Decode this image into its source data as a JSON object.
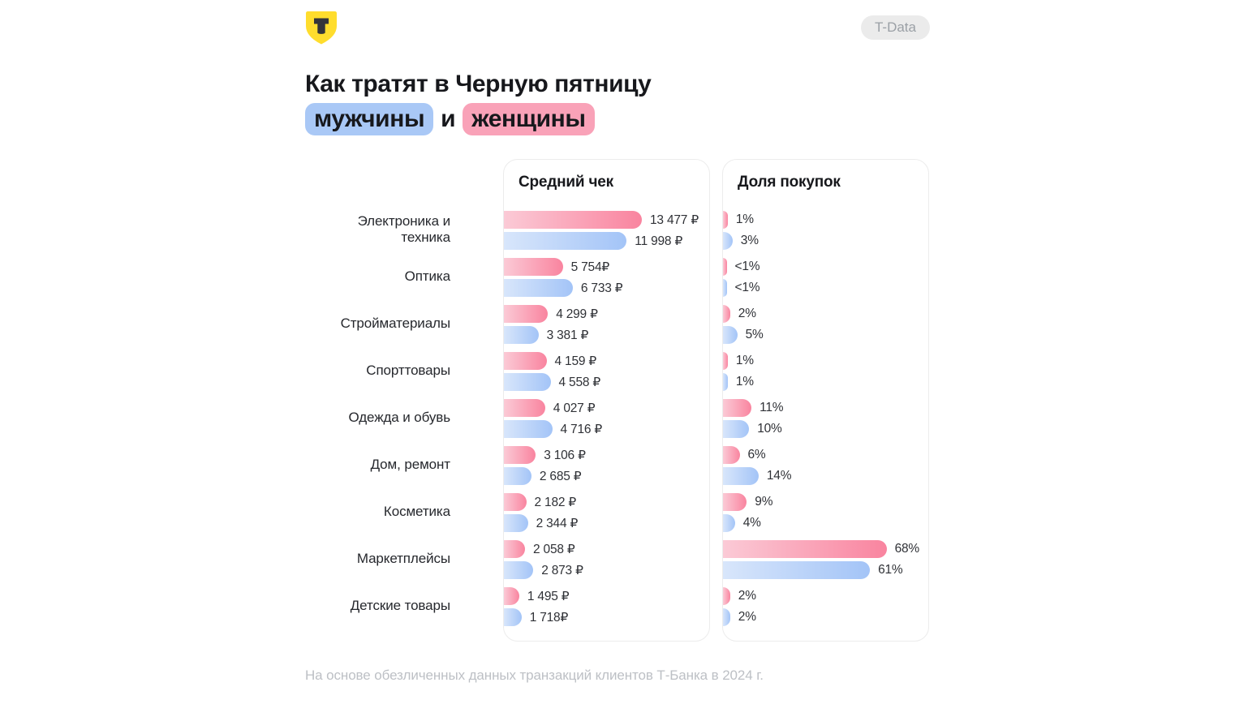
{
  "header": {
    "logo_letter": "T",
    "badge": "T-Data"
  },
  "title": {
    "line1": "Как тратят в Черную пятницу",
    "pill_men": "мужчины",
    "conjunction": "и",
    "pill_women": "женщины"
  },
  "categories": [
    {
      "label": "Электроника и техника",
      "icon": "monitor-icon"
    },
    {
      "label": "Оптика",
      "icon": "glasses-icon"
    },
    {
      "label": "Стройматериалы",
      "icon": "hammer-icon"
    },
    {
      "label": "Спорттовары",
      "icon": "dumbbell-icon"
    },
    {
      "label": "Одежда и обувь",
      "icon": "tshirt-icon"
    },
    {
      "label": "Дом, ремонт",
      "icon": "house-icon"
    },
    {
      "label": "Косметика",
      "icon": "lips-icon"
    },
    {
      "label": "Маркетплейсы",
      "icon": "cart-icon"
    },
    {
      "label": "Детские товары",
      "icon": "duck-icon"
    }
  ],
  "chart_data": [
    {
      "type": "bar",
      "orientation": "horizontal",
      "title": "Средний чек",
      "unit": "₽",
      "categories": [
        "Электроника и техника",
        "Оптика",
        "Стройматериалы",
        "Спорттовары",
        "Одежда и обувь",
        "Дом, ремонт",
        "Косметика",
        "Маркетплейсы",
        "Детские товары"
      ],
      "series": [
        {
          "name": "женщины",
          "color": "#f9849f",
          "values": [
            13477,
            5754,
            4299,
            4159,
            4027,
            3106,
            2182,
            2058,
            1495
          ],
          "value_labels": [
            "13 477 ₽",
            "5 754₽",
            "4 299 ₽",
            "4 159 ₽",
            "4 027 ₽",
            "3 106 ₽",
            "2 182 ₽",
            "2 058 ₽",
            "1 495 ₽"
          ]
        },
        {
          "name": "мужчины",
          "color": "#a3c4f7",
          "values": [
            11998,
            6733,
            3381,
            4558,
            4716,
            2685,
            2344,
            2873,
            1718
          ],
          "value_labels": [
            "11 998 ₽",
            "6 733 ₽",
            "3 381 ₽",
            "4 558 ₽",
            "4 716 ₽",
            "2 685 ₽",
            "2 344 ₽",
            "2 873 ₽",
            "1 718₽"
          ]
        }
      ],
      "xlim": [
        0,
        13477
      ],
      "grid": false,
      "legend": "title-pills"
    },
    {
      "type": "bar",
      "orientation": "horizontal",
      "title": "Доля покупок",
      "unit": "%",
      "categories": [
        "Электроника и техника",
        "Оптика",
        "Стройматериалы",
        "Спорттовары",
        "Одежда и обувь",
        "Дом, ремонт",
        "Косметика",
        "Маркетплейсы",
        "Детские товары"
      ],
      "series": [
        {
          "name": "женщины",
          "color": "#f9849f",
          "values": [
            1,
            0.5,
            2,
            1,
            11,
            6,
            9,
            68,
            2
          ],
          "value_labels": [
            "1%",
            "<1%",
            "2%",
            "1%",
            "11%",
            "6%",
            "9%",
            "68%",
            "2%"
          ]
        },
        {
          "name": "мужчины",
          "color": "#a3c4f7",
          "values": [
            3,
            0.5,
            5,
            1,
            10,
            14,
            4,
            61,
            2
          ],
          "value_labels": [
            "3%",
            "<1%",
            "5%",
            "1%",
            "10%",
            "14%",
            "4%",
            "61%",
            "2%"
          ]
        }
      ],
      "xlim": [
        0,
        68
      ],
      "grid": false,
      "legend": "title-pills"
    }
  ],
  "footer": {
    "note": "На основе обезличенных данных транзакций клиентов Т-Банка в 2024 г."
  },
  "colors": {
    "brand_yellow": "#FFDD2D",
    "women_pink": "#f9849f",
    "women_pink_light": "#fbcad6",
    "men_blue": "#a3c4f7",
    "men_blue_light": "#d8e6fb",
    "pill_men_bg": "#a9c8f6",
    "pill_women_bg": "#f9a2b8",
    "badge_bg": "#ebebeb",
    "badge_text": "#9ba0a6",
    "text_dark": "#17181c",
    "footer_text": "#bdc0c5",
    "card_border": "#ececec"
  }
}
